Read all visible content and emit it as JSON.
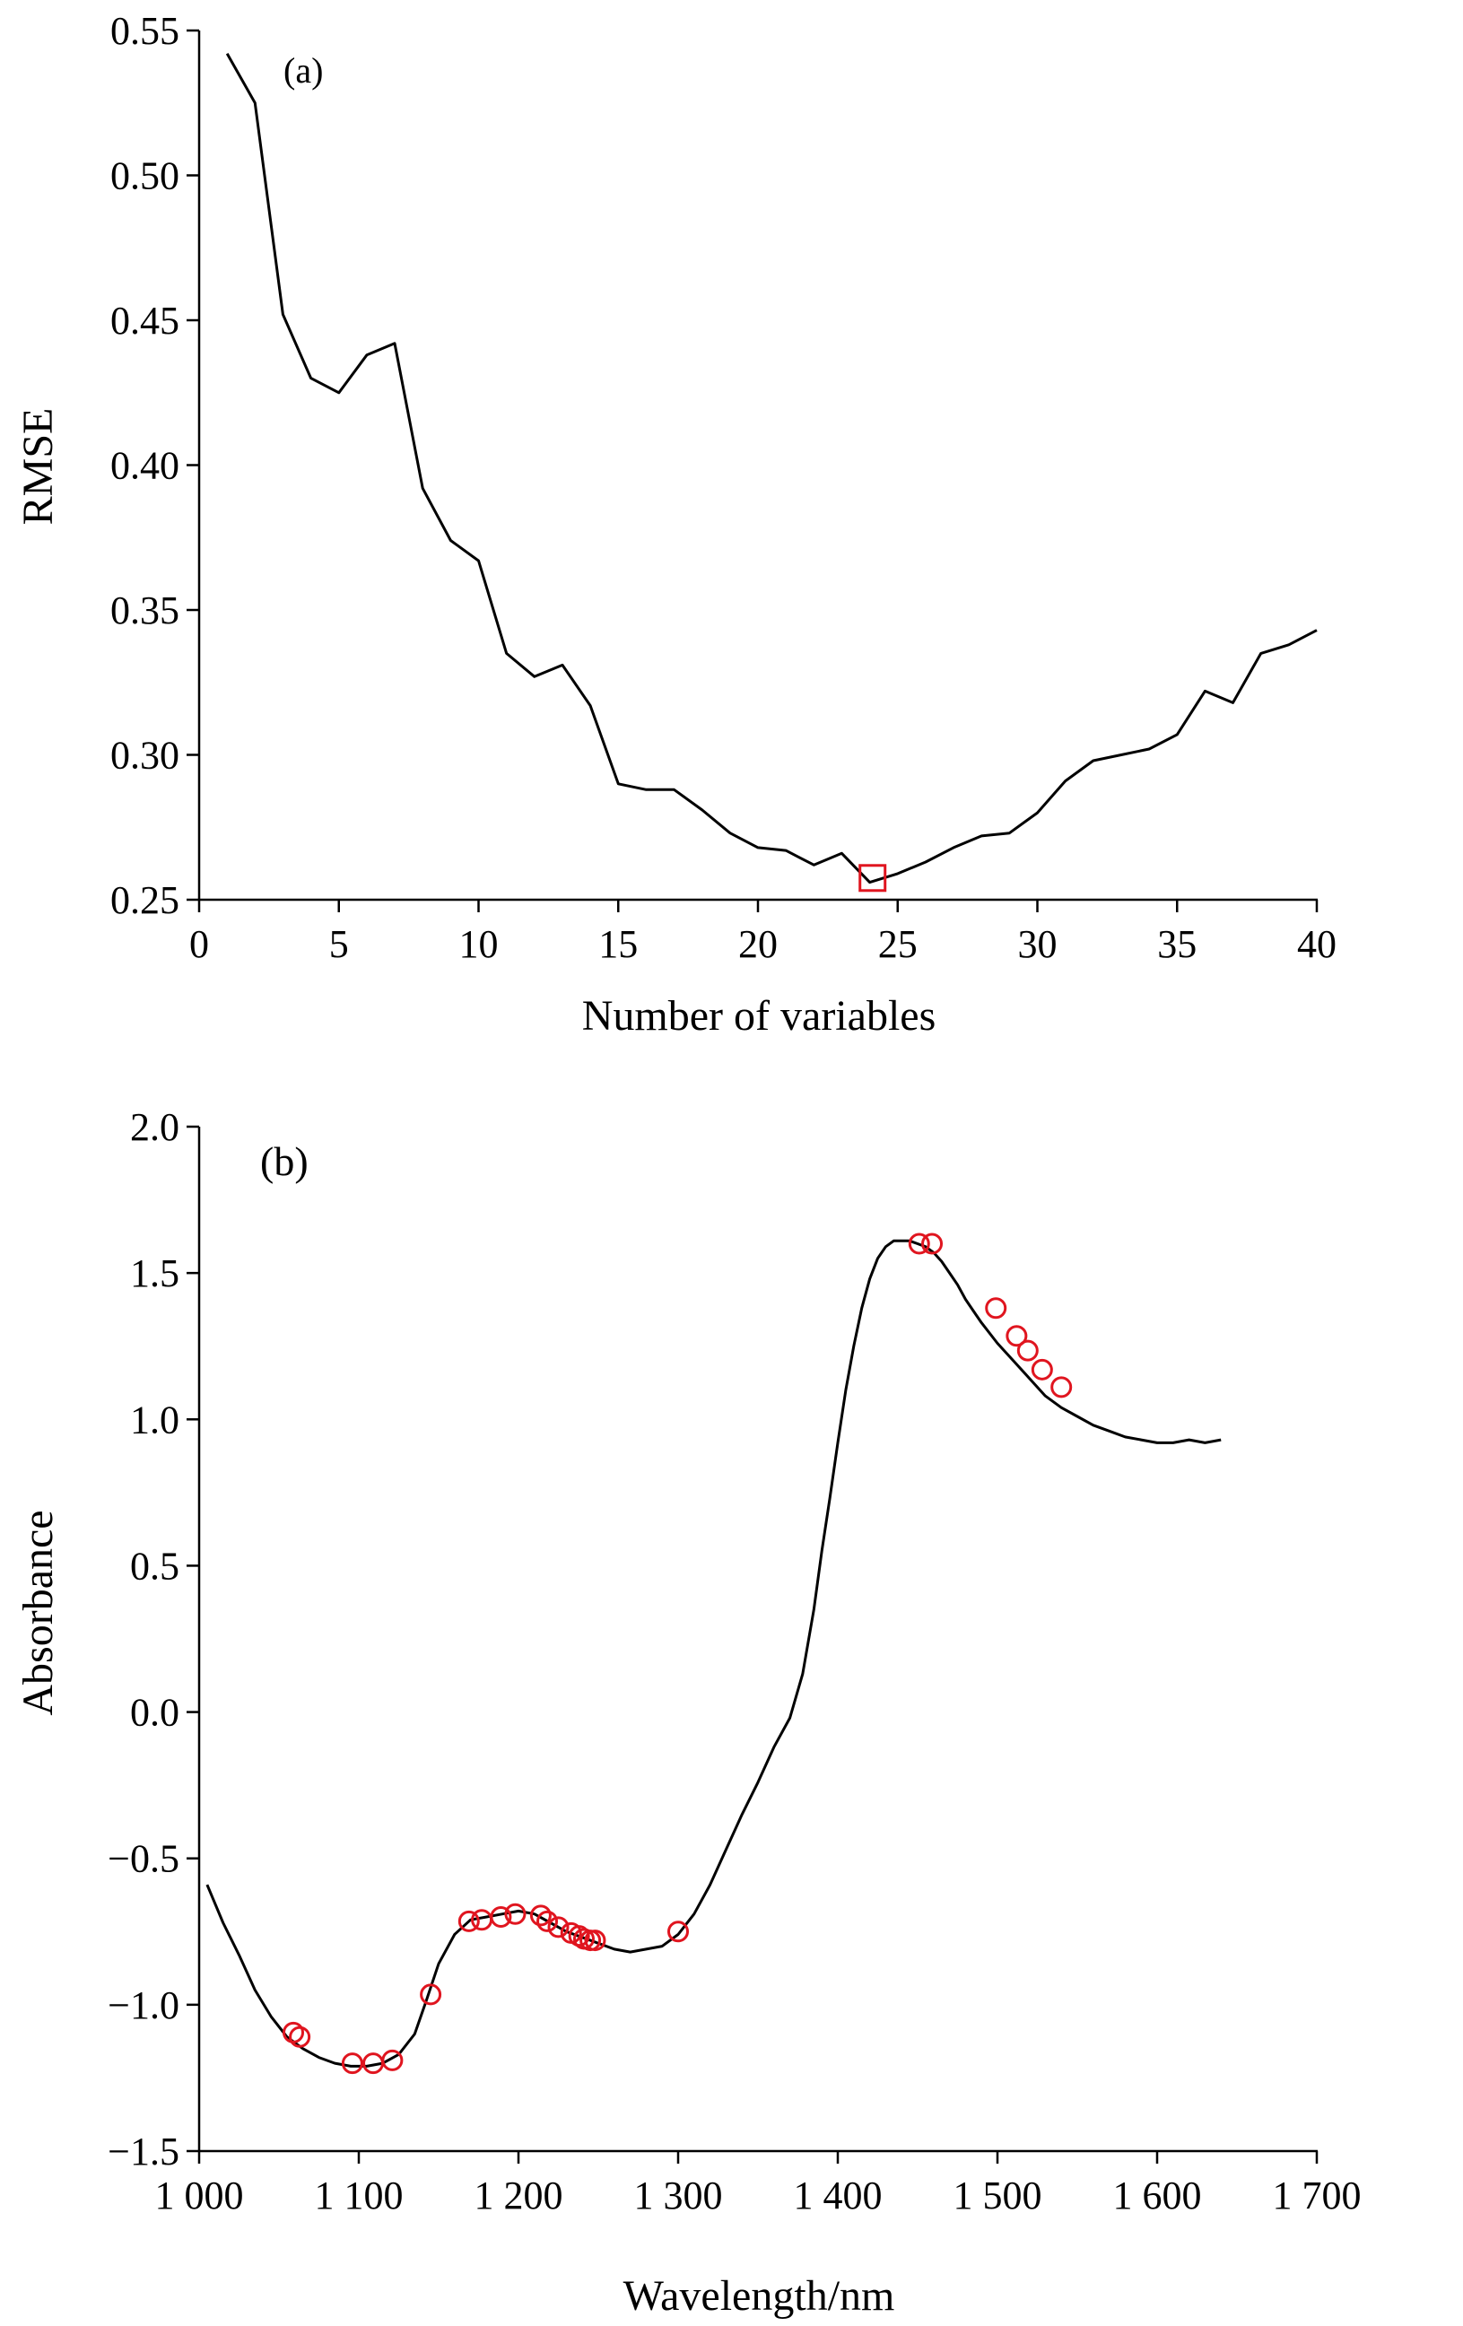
{
  "colors": {
    "line": "#000000",
    "marker": "#e0151f",
    "axis": "#000000",
    "background": "#ffffff"
  },
  "chart_data": [
    {
      "type": "line",
      "panel_label": "(a)",
      "xlabel": "Number of variables",
      "ylabel": "RMSE",
      "xlim": [
        0,
        40
      ],
      "ylim": [
        0.25,
        0.55
      ],
      "xticks": [
        "0",
        "5",
        "10",
        "15",
        "20",
        "25",
        "30",
        "35",
        "40"
      ],
      "xtick_values": [
        0,
        5,
        10,
        15,
        20,
        25,
        30,
        35,
        40
      ],
      "yticks": [
        "0.25",
        "0.30",
        "0.35",
        "0.40",
        "0.45",
        "0.50",
        "0.55"
      ],
      "ytick_values": [
        0.25,
        0.3,
        0.35,
        0.4,
        0.45,
        0.5,
        0.55
      ],
      "grid": false,
      "series": [
        {
          "x": [
            1,
            2,
            3,
            4,
            5,
            6,
            7,
            8,
            9,
            10,
            11,
            12,
            13,
            14,
            15,
            16,
            17,
            18,
            19,
            20,
            21,
            22,
            23,
            24,
            25,
            26,
            27,
            28,
            29,
            30,
            31,
            32,
            33,
            34,
            35,
            36,
            37,
            38,
            39,
            40
          ],
          "values": [
            0.542,
            0.525,
            0.452,
            0.43,
            0.425,
            0.438,
            0.442,
            0.392,
            0.374,
            0.367,
            0.335,
            0.327,
            0.331,
            0.317,
            0.29,
            0.288,
            0.288,
            0.281,
            0.273,
            0.268,
            0.267,
            0.262,
            0.266,
            0.256,
            0.259,
            0.263,
            0.268,
            0.272,
            0.273,
            0.28,
            0.291,
            0.298,
            0.3,
            0.302,
            0.307,
            0.322,
            0.318,
            0.335,
            0.338,
            0.343
          ]
        }
      ],
      "highlight": {
        "marker": "square",
        "x": 24.1,
        "y": 0.2575
      }
    },
    {
      "type": "line",
      "panel_label": "(b)",
      "xlabel": "Wavelength/nm",
      "ylabel": "Absorbance",
      "xlim": [
        1000,
        1700
      ],
      "ylim": [
        -1.5,
        2.0
      ],
      "xticks": [
        "1 000",
        "1 100",
        "1 200",
        "1 300",
        "1 400",
        "1 500",
        "1 600",
        "1 700"
      ],
      "xtick_values": [
        1000,
        1100,
        1200,
        1300,
        1400,
        1500,
        1600,
        1700
      ],
      "yticks": [
        "−1.5",
        "−1.0",
        "−0.5",
        "0.0",
        "0.5",
        "1.0",
        "1.5",
        "2.0"
      ],
      "ytick_values": [
        -1.5,
        -1.0,
        -0.5,
        0.0,
        0.5,
        1.0,
        1.5,
        2.0
      ],
      "grid": false,
      "series": [
        {
          "x": [
            1005,
            1015,
            1025,
            1035,
            1045,
            1055,
            1065,
            1075,
            1085,
            1095,
            1105,
            1115,
            1125,
            1135,
            1142,
            1150,
            1160,
            1170,
            1180,
            1190,
            1200,
            1210,
            1220,
            1230,
            1240,
            1250,
            1260,
            1270,
            1280,
            1290,
            1300,
            1310,
            1320,
            1330,
            1340,
            1350,
            1360,
            1370,
            1378,
            1385,
            1390,
            1395,
            1400,
            1405,
            1410,
            1415,
            1420,
            1425,
            1430,
            1435,
            1440,
            1445,
            1450,
            1455,
            1460,
            1465,
            1470,
            1475,
            1480,
            1485,
            1490,
            1500,
            1510,
            1520,
            1530,
            1540,
            1550,
            1560,
            1570,
            1580,
            1590,
            1600,
            1610,
            1620,
            1630,
            1640
          ],
          "values": [
            -0.59,
            -0.72,
            -0.83,
            -0.95,
            -1.04,
            -1.11,
            -1.15,
            -1.18,
            -1.2,
            -1.21,
            -1.21,
            -1.2,
            -1.17,
            -1.1,
            -0.99,
            -0.86,
            -0.76,
            -0.71,
            -0.7,
            -0.69,
            -0.68,
            -0.69,
            -0.72,
            -0.75,
            -0.77,
            -0.79,
            -0.81,
            -0.82,
            -0.81,
            -0.8,
            -0.76,
            -0.69,
            -0.59,
            -0.47,
            -0.35,
            -0.24,
            -0.12,
            -0.02,
            0.13,
            0.35,
            0.55,
            0.73,
            0.92,
            1.1,
            1.25,
            1.38,
            1.48,
            1.55,
            1.59,
            1.61,
            1.61,
            1.61,
            1.6,
            1.59,
            1.57,
            1.54,
            1.5,
            1.46,
            1.41,
            1.37,
            1.33,
            1.26,
            1.2,
            1.14,
            1.08,
            1.04,
            1.01,
            0.98,
            0.96,
            0.94,
            0.93,
            0.92,
            0.92,
            0.93,
            0.92,
            0.93
          ]
        }
      ],
      "markers": {
        "shape": "circle",
        "x": [
          1059,
          1063,
          1096,
          1109,
          1121,
          1145,
          1169,
          1177,
          1189,
          1198,
          1214,
          1218,
          1225,
          1233,
          1238,
          1241,
          1245,
          1248,
          1300,
          1451,
          1459,
          1499,
          1512,
          1519,
          1528,
          1540
        ],
        "values": [
          -1.095,
          -1.11,
          -1.2,
          -1.2,
          -1.19,
          -0.965,
          -0.715,
          -0.71,
          -0.7,
          -0.69,
          -0.695,
          -0.715,
          -0.735,
          -0.755,
          -0.765,
          -0.775,
          -0.78,
          -0.78,
          -0.75,
          1.6,
          1.6,
          1.38,
          1.285,
          1.235,
          1.17,
          1.11
        ]
      }
    }
  ]
}
